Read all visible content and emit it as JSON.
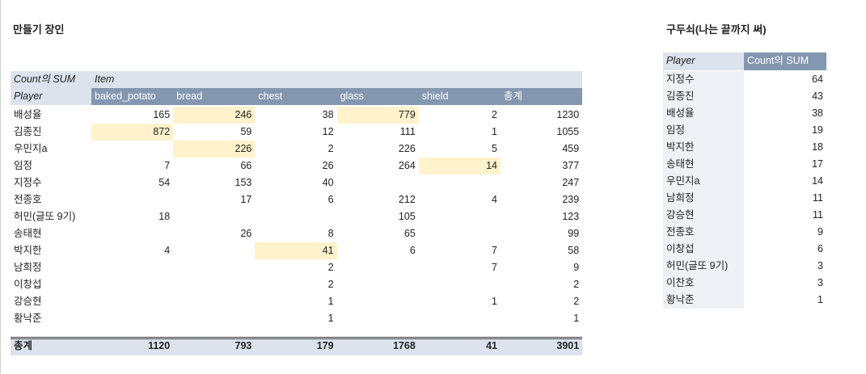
{
  "left": {
    "title": "만들기 장인",
    "corner": "Count의 SUM",
    "column_field": "Item",
    "row_field": "Player",
    "columns": [
      "baked_potato",
      "bread",
      "chest",
      "glass",
      "shield",
      "총계"
    ],
    "rows": [
      {
        "player": "배성율",
        "cells": [
          165,
          246,
          38,
          779,
          2,
          1230
        ]
      },
      {
        "player": "김종진",
        "cells": [
          872,
          59,
          12,
          111,
          1,
          1055
        ]
      },
      {
        "player": "우민지a",
        "cells": [
          null,
          226,
          2,
          226,
          5,
          459
        ]
      },
      {
        "player": "임정",
        "cells": [
          7,
          66,
          26,
          264,
          14,
          377
        ]
      },
      {
        "player": "지정수",
        "cells": [
          54,
          153,
          40,
          null,
          null,
          247
        ]
      },
      {
        "player": "전종호",
        "cells": [
          null,
          17,
          6,
          212,
          4,
          239
        ]
      },
      {
        "player": "허민(글또 9기)",
        "cells": [
          18,
          null,
          null,
          105,
          null,
          123
        ]
      },
      {
        "player": "송태현",
        "cells": [
          null,
          26,
          8,
          65,
          null,
          99
        ]
      },
      {
        "player": "박지한",
        "cells": [
          4,
          null,
          41,
          6,
          7,
          58
        ]
      },
      {
        "player": "남희정",
        "cells": [
          null,
          null,
          2,
          null,
          7,
          9
        ]
      },
      {
        "player": "이창섭",
        "cells": [
          null,
          null,
          2,
          null,
          null,
          2
        ]
      },
      {
        "player": "강승현",
        "cells": [
          null,
          null,
          1,
          null,
          1,
          2
        ]
      },
      {
        "player": "황낙준",
        "cells": [
          null,
          null,
          1,
          null,
          null,
          1
        ]
      }
    ],
    "total": {
      "label": "총계",
      "cells": [
        1120,
        793,
        179,
        1768,
        41,
        3901
      ]
    },
    "highlighted": [
      [
        0,
        1
      ],
      [
        0,
        3
      ],
      [
        1,
        0
      ],
      [
        2,
        1
      ],
      [
        3,
        4
      ],
      [
        8,
        2
      ]
    ],
    "highlight_color": "#fff2cc"
  },
  "right": {
    "title": "구두쇠(나는 끝까지 써)",
    "headers": [
      "Player",
      "Count의 SUM"
    ],
    "rows": [
      [
        "지정수",
        64
      ],
      [
        "김종진",
        43
      ],
      [
        "배성율",
        38
      ],
      [
        "임정",
        19
      ],
      [
        "박지한",
        18
      ],
      [
        "송태현",
        17
      ],
      [
        "우민지a",
        14
      ],
      [
        "남희정",
        11
      ],
      [
        "강승현",
        11
      ],
      [
        "전종호",
        9
      ],
      [
        "이창섭",
        6
      ],
      [
        "허민(글또 9기)",
        3
      ],
      [
        "이찬호",
        3
      ],
      [
        "황낙준",
        1
      ]
    ]
  }
}
